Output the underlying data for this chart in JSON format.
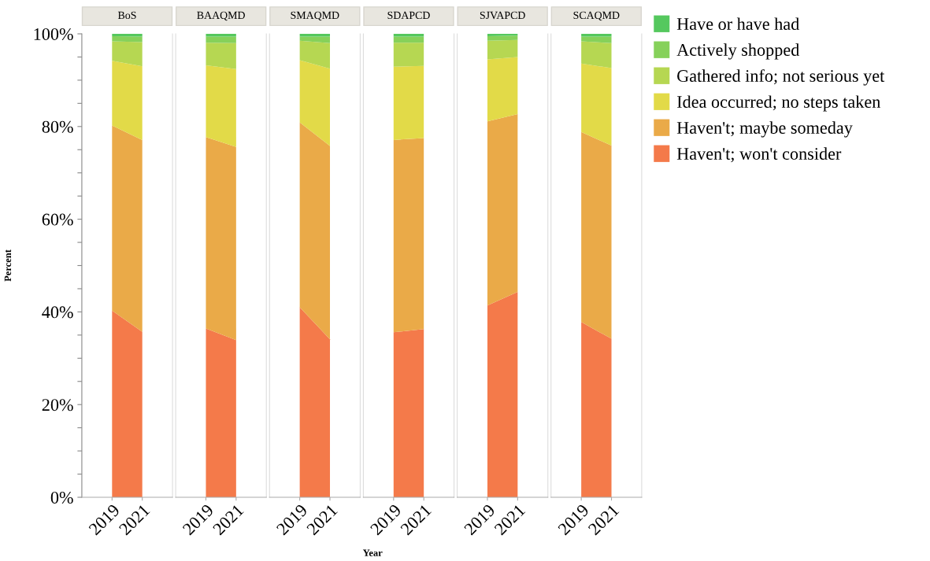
{
  "chart_data": [
    {
      "type": "area",
      "stacked": true,
      "title": "BoS",
      "ylabel": "Percent",
      "legend": "right",
      "categories": [
        "2019",
        "2021"
      ],
      "ylim": [
        0,
        100
      ],
      "yticks": [
        {
          "value": 0,
          "label": "0%"
        },
        {
          "value": 5,
          "label": null
        },
        {
          "value": 10,
          "label": null
        },
        {
          "value": 15,
          "label": null
        },
        {
          "value": 20,
          "label": "20%"
        },
        {
          "value": 25,
          "label": null
        },
        {
          "value": 30,
          "label": null
        },
        {
          "value": 35,
          "label": null
        },
        {
          "value": 40,
          "label": "40%"
        },
        {
          "value": 45,
          "label": null
        },
        {
          "value": 50,
          "label": null
        },
        {
          "value": 55,
          "label": null
        },
        {
          "value": 60,
          "label": "60%"
        },
        {
          "value": 65,
          "label": null
        },
        {
          "value": 70,
          "label": null
        },
        {
          "value": 75,
          "label": null
        },
        {
          "value": 80,
          "label": "80%"
        },
        {
          "value": 85,
          "label": null
        },
        {
          "value": 90,
          "label": null
        },
        {
          "value": 95,
          "label": null
        },
        {
          "value": 100,
          "label": "100%"
        }
      ],
      "series": [
        {
          "name": "Haven't; won't consider",
          "color": "#f47a4a",
          "values": [
            40.3,
            35.7
          ]
        },
        {
          "name": "Haven't; maybe someday",
          "color": "#eaaa48",
          "values": [
            39.9,
            41.4
          ]
        },
        {
          "name": "Idea occurred; no steps taken",
          "color": "#e2da48",
          "values": [
            14.0,
            15.9
          ]
        },
        {
          "name": "Gathered info; not serious yet",
          "color": "#b6d752",
          "values": [
            4.2,
            5.2
          ]
        },
        {
          "name": "Actively shopped",
          "color": "#86d15a",
          "values": [
            1.1,
            1.2
          ]
        },
        {
          "name": "Have or have had",
          "color": "#55c85e",
          "values": [
            0.5,
            0.6
          ]
        }
      ]
    },
    {
      "type": "area",
      "stacked": true,
      "title": "BAAQMD",
      "tick_labels": "x",
      "categories": [
        "2019",
        "2021"
      ],
      "ylim": [
        0,
        100
      ],
      "series": [
        {
          "color": "#f47a4a",
          "values": [
            36.4,
            33.9
          ]
        },
        {
          "color": "#eaaa48",
          "values": [
            41.3,
            41.7
          ]
        },
        {
          "color": "#e2da48",
          "values": [
            15.5,
            16.8
          ]
        },
        {
          "color": "#b6d752",
          "values": [
            4.9,
            5.6
          ]
        },
        {
          "color": "#86d15a",
          "values": [
            1.3,
            1.4
          ]
        },
        {
          "color": "#55c85e",
          "values": [
            0.6,
            0.6
          ]
        }
      ]
    },
    {
      "type": "area",
      "stacked": true,
      "title": "SMAQMD",
      "tick_labels": "x",
      "categories": [
        "2019",
        "2021"
      ],
      "ylim": [
        0,
        100
      ],
      "series": [
        {
          "color": "#f47a4a",
          "values": [
            41.0,
            34.1
          ]
        },
        {
          "color": "#eaaa48",
          "values": [
            39.9,
            41.7
          ]
        },
        {
          "color": "#e2da48",
          "values": [
            13.4,
            16.7
          ]
        },
        {
          "color": "#b6d752",
          "values": [
            4.2,
            5.5
          ]
        },
        {
          "color": "#86d15a",
          "values": [
            0.9,
            1.4
          ]
        },
        {
          "color": "#55c85e",
          "values": [
            0.6,
            0.6
          ]
        }
      ]
    },
    {
      "type": "area",
      "stacked": true,
      "title": "SDAPCD",
      "xlabel": "Year",
      "tick_labels": "x",
      "categories": [
        "2019",
        "2021"
      ],
      "ylim": [
        0,
        100
      ],
      "series": [
        {
          "color": "#f47a4a",
          "values": [
            35.6,
            36.3
          ]
        },
        {
          "color": "#eaaa48",
          "values": [
            41.5,
            41.2
          ]
        },
        {
          "color": "#e2da48",
          "values": [
            15.8,
            15.6
          ]
        },
        {
          "color": "#b6d752",
          "values": [
            5.2,
            5.0
          ]
        },
        {
          "color": "#86d15a",
          "values": [
            1.3,
            1.3
          ]
        },
        {
          "color": "#55c85e",
          "values": [
            0.6,
            0.6
          ]
        }
      ]
    },
    {
      "type": "area",
      "stacked": true,
      "title": "SJVAPCD",
      "tick_labels": "x",
      "categories": [
        "2019",
        "2021"
      ],
      "ylim": [
        0,
        100
      ],
      "series": [
        {
          "color": "#f47a4a",
          "values": [
            41.4,
            44.3
          ]
        },
        {
          "color": "#eaaa48",
          "values": [
            39.7,
            38.4
          ]
        },
        {
          "color": "#e2da48",
          "values": [
            13.4,
            12.3
          ]
        },
        {
          "color": "#b6d752",
          "values": [
            4.0,
            3.7
          ]
        },
        {
          "color": "#86d15a",
          "values": [
            1.0,
            0.9
          ]
        },
        {
          "color": "#55c85e",
          "values": [
            0.5,
            0.4
          ]
        }
      ]
    },
    {
      "type": "area",
      "stacked": true,
      "title": "SCAQMD",
      "tick_labels": "x",
      "categories": [
        "2019",
        "2021"
      ],
      "ylim": [
        0,
        100
      ],
      "series": [
        {
          "color": "#f47a4a",
          "values": [
            37.8,
            34.2
          ]
        },
        {
          "color": "#eaaa48",
          "values": [
            41.0,
            41.7
          ]
        },
        {
          "color": "#e2da48",
          "values": [
            14.8,
            16.7
          ]
        },
        {
          "color": "#b6d752",
          "values": [
            4.8,
            5.4
          ]
        },
        {
          "color": "#86d15a",
          "values": [
            1.0,
            1.4
          ]
        },
        {
          "color": "#55c85e",
          "values": [
            0.6,
            0.6
          ]
        }
      ]
    }
  ]
}
